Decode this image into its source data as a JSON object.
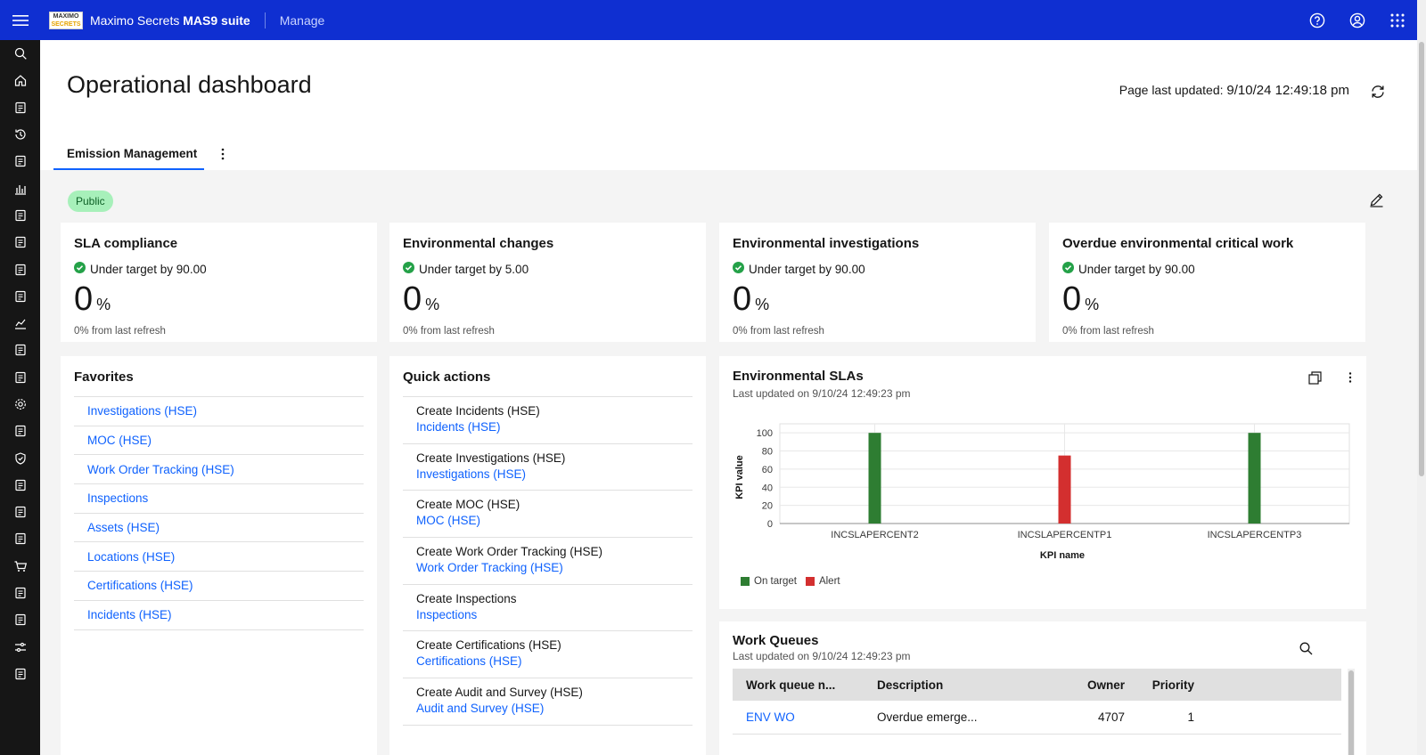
{
  "topbar": {
    "logo_line1": "MAXIMO",
    "logo_line2": "SECRETS",
    "brand_prefix": "Maximo Secrets ",
    "brand_bold": "MAS9 suite",
    "app": "Manage"
  },
  "sidebar": {
    "icons": [
      "search-icon",
      "home-icon",
      "dashboard-icon",
      "history-icon",
      "people-icon",
      "reports-icon",
      "satellite-icon",
      "inspection-icon",
      "clipboard-icon",
      "document-icon",
      "chart-icon",
      "monitor-icon",
      "toolbox-icon",
      "settings-icon",
      "integration-icon",
      "shield-icon",
      "ledger-icon",
      "assessment-icon",
      "hazard-icon",
      "cart-icon",
      "handshake-icon",
      "users-icon",
      "sliders-icon",
      "checklist-icon"
    ]
  },
  "page": {
    "title": "Operational dashboard",
    "last_updated_label": "Page last updated: ",
    "last_updated_value": "9/10/24 12:49:18 pm",
    "tab": "Emission Management",
    "badge": "Public"
  },
  "kpis": [
    {
      "title": "SLA compliance",
      "status": "Under target by 90.00",
      "value": "0",
      "unit": "%",
      "footer": "0% from last refresh"
    },
    {
      "title": "Environmental changes",
      "status": "Under target by 5.00",
      "value": "0",
      "unit": "%",
      "footer": "0% from last refresh"
    },
    {
      "title": "Environmental investigations",
      "status": "Under target by 90.00",
      "value": "0",
      "unit": "%",
      "footer": "0% from last refresh"
    },
    {
      "title": "Overdue environmental critical work",
      "status": "Under target by 90.00",
      "value": "0",
      "unit": "%",
      "footer": "0% from last refresh"
    }
  ],
  "favorites": {
    "title": "Favorites",
    "items": [
      "Investigations (HSE)",
      "MOC (HSE)",
      "Work Order Tracking (HSE)",
      "Inspections",
      "Assets (HSE)",
      "Locations (HSE)",
      "Certifications (HSE)",
      "Incidents (HSE)"
    ]
  },
  "quick_actions": {
    "title": "Quick actions",
    "items": [
      {
        "action": "Create Incidents (HSE)",
        "app": "Incidents (HSE)"
      },
      {
        "action": "Create Investigations (HSE)",
        "app": "Investigations (HSE)"
      },
      {
        "action": "Create MOC (HSE)",
        "app": "MOC (HSE)"
      },
      {
        "action": "Create Work Order Tracking (HSE)",
        "app": "Work Order Tracking (HSE)"
      },
      {
        "action": "Create Inspections",
        "app": "Inspections"
      },
      {
        "action": "Create Certifications (HSE)",
        "app": "Certifications (HSE)"
      },
      {
        "action": "Create Audit and Survey (HSE)",
        "app": "Audit and Survey (HSE)"
      }
    ]
  },
  "env_sla": {
    "title": "Environmental SLAs",
    "updated": "Last updated on 9/10/24 12:49:23 pm",
    "legend": [
      {
        "name": "On target",
        "color": "#2e7d32"
      },
      {
        "name": "Alert",
        "color": "#d32f2f"
      }
    ]
  },
  "chart_data": {
    "type": "bar",
    "xlabel": "KPI name",
    "ylabel": "KPI value",
    "ylim": [
      0,
      110
    ],
    "yticks": [
      0,
      20,
      40,
      60,
      80,
      100
    ],
    "grid": true,
    "legend_position": "bottom-left",
    "categories": [
      "INCSLAPERCENT2",
      "INCSLAPERCENTP1",
      "INCSLAPERCENTP3"
    ],
    "values": [
      100,
      75,
      100
    ],
    "colors": [
      "#2e7d32",
      "#d32f2f",
      "#2e7d32"
    ],
    "series_status": [
      "On target",
      "Alert",
      "On target"
    ]
  },
  "work_queues": {
    "title": "Work Queues",
    "updated": "Last updated on 9/10/24 12:49:23 pm",
    "columns": [
      "Work queue n...",
      "Description",
      "Owner",
      "Priority"
    ],
    "rows": [
      {
        "name": "ENV WO",
        "description": "Overdue emerge...",
        "owner": "4707",
        "priority": "1"
      }
    ]
  }
}
